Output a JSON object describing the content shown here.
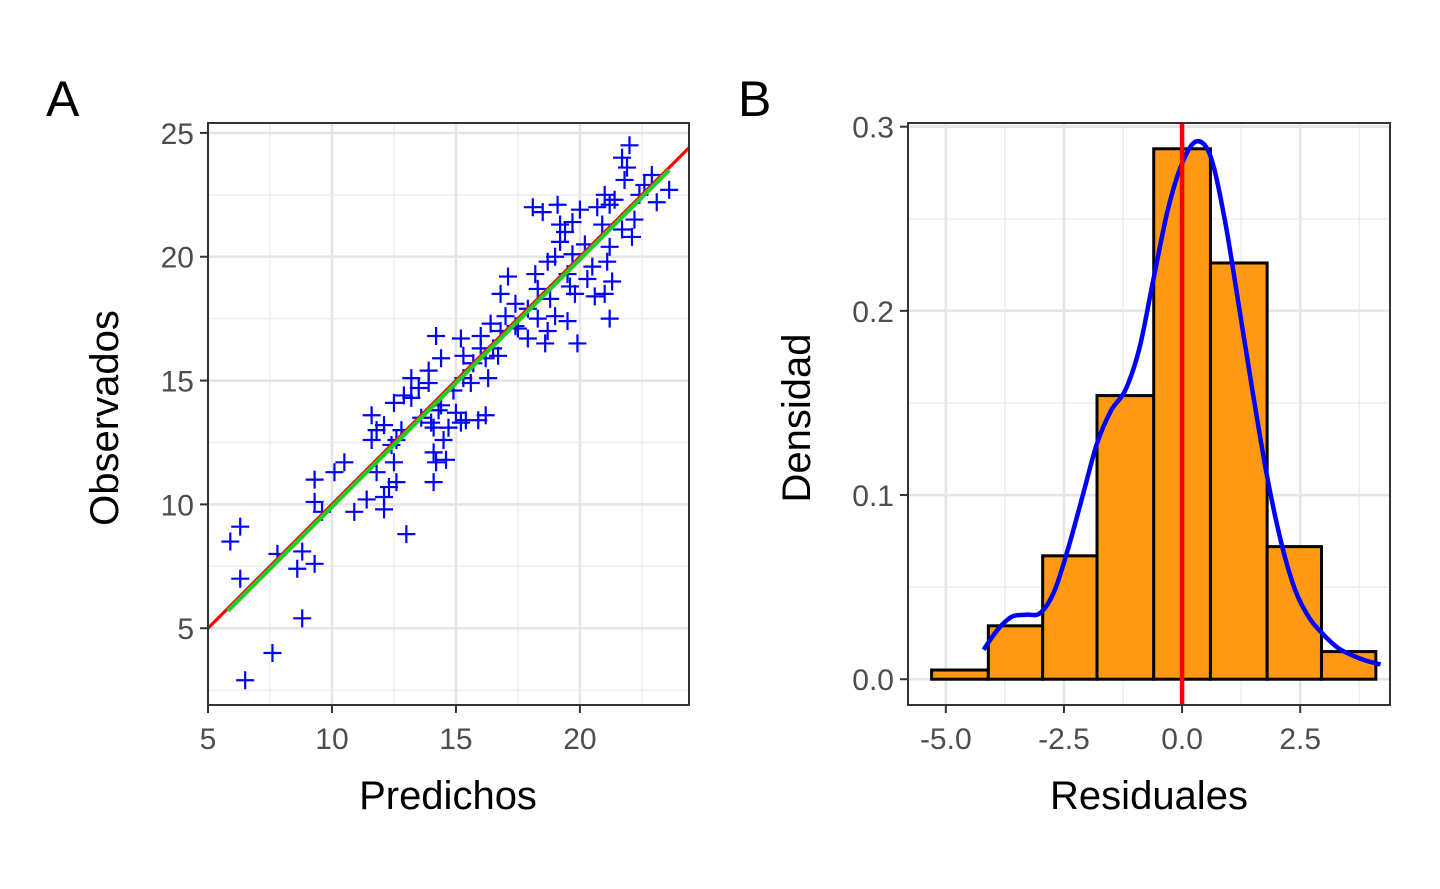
{
  "chart_data": [
    {
      "panel": "A",
      "type": "scatter",
      "xlabel": "Predichos",
      "ylabel": "Observados",
      "xlim": [
        5,
        24.4
      ],
      "ylim": [
        1.9,
        25.4
      ],
      "xticks": [
        5,
        10,
        15,
        20
      ],
      "yticks": [
        5,
        10,
        15,
        20,
        25
      ],
      "grid": true,
      "point_color": "#0000ff",
      "marker": "plus",
      "points": [
        [
          6.5,
          2.9
        ],
        [
          7.6,
          4.0
        ],
        [
          8.8,
          5.4
        ],
        [
          8.6,
          7.4
        ],
        [
          9.3,
          7.6
        ],
        [
          8.8,
          8.1
        ],
        [
          7.8,
          8.0
        ],
        [
          5.9,
          8.5
        ],
        [
          6.3,
          9.1
        ],
        [
          6.3,
          7.0
        ],
        [
          9.3,
          10.1
        ],
        [
          9.3,
          11.0
        ],
        [
          9.6,
          9.7
        ],
        [
          10.1,
          11.3
        ],
        [
          10.5,
          11.7
        ],
        [
          10.9,
          9.7
        ],
        [
          11.4,
          10.2
        ],
        [
          12.1,
          10.3
        ],
        [
          12.1,
          9.8
        ],
        [
          12.3,
          10.7
        ],
        [
          12.6,
          10.9
        ],
        [
          13.0,
          8.8
        ],
        [
          11.8,
          11.3
        ],
        [
          12.5,
          11.7
        ],
        [
          11.6,
          12.6
        ],
        [
          12.4,
          12.4
        ],
        [
          11.8,
          13.0
        ],
        [
          11.6,
          13.6
        ],
        [
          12.1,
          13.2
        ],
        [
          12.6,
          12.6
        ],
        [
          12.8,
          13.0
        ],
        [
          12.5,
          14.1
        ],
        [
          12.9,
          14.4
        ],
        [
          13.2,
          14.3
        ],
        [
          13.6,
          13.5
        ],
        [
          13.9,
          14.9
        ],
        [
          13.2,
          15.1
        ],
        [
          13.5,
          14.7
        ],
        [
          13.9,
          15.4
        ],
        [
          14.1,
          13.1
        ],
        [
          14.3,
          13.8
        ],
        [
          14.1,
          12.1
        ],
        [
          14.0,
          13.3
        ],
        [
          14.7,
          13.1
        ],
        [
          14.4,
          14.0
        ],
        [
          14.5,
          12.6
        ],
        [
          14.2,
          11.7
        ],
        [
          14.6,
          11.8
        ],
        [
          14.1,
          10.9
        ],
        [
          15.2,
          13.3
        ],
        [
          15.0,
          13.7
        ],
        [
          15.4,
          13.4
        ],
        [
          14.9,
          14.6
        ],
        [
          15.3,
          15.1
        ],
        [
          15.6,
          14.9
        ],
        [
          15.9,
          13.4
        ],
        [
          16.2,
          13.6
        ],
        [
          14.4,
          15.9
        ],
        [
          14.2,
          16.8
        ],
        [
          15.2,
          16.7
        ],
        [
          15.3,
          16.0
        ],
        [
          15.7,
          15.7
        ],
        [
          16.0,
          16.3
        ],
        [
          16.2,
          15.9
        ],
        [
          16.7,
          16.0
        ],
        [
          16.5,
          16.3
        ],
        [
          16.3,
          15.1
        ],
        [
          16.0,
          16.8
        ],
        [
          16.8,
          17.0
        ],
        [
          16.4,
          17.3
        ],
        [
          17.0,
          17.6
        ],
        [
          17.4,
          17.2
        ],
        [
          16.8,
          18.5
        ],
        [
          17.1,
          19.2
        ],
        [
          17.4,
          18.1
        ],
        [
          17.9,
          17.9
        ],
        [
          18.3,
          17.5
        ],
        [
          18.7,
          17.0
        ],
        [
          18.6,
          16.5
        ],
        [
          19.0,
          17.6
        ],
        [
          18.8,
          18.3
        ],
        [
          18.3,
          18.7
        ],
        [
          18.2,
          19.3
        ],
        [
          18.7,
          19.8
        ],
        [
          19.0,
          20.0
        ],
        [
          19.2,
          20.6
        ],
        [
          19.5,
          19.3
        ],
        [
          19.6,
          18.8
        ],
        [
          19.8,
          18.5
        ],
        [
          19.7,
          20.1
        ],
        [
          19.4,
          21.0
        ],
        [
          19.2,
          21.3
        ],
        [
          19.7,
          21.4
        ],
        [
          20.0,
          21.9
        ],
        [
          20.2,
          20.5
        ],
        [
          20.3,
          19.1
        ],
        [
          20.5,
          19.6
        ],
        [
          20.6,
          18.4
        ],
        [
          21.0,
          18.5
        ],
        [
          21.3,
          19.0
        ],
        [
          21.1,
          19.8
        ],
        [
          21.2,
          20.4
        ],
        [
          20.9,
          21.3
        ],
        [
          20.7,
          22.0
        ],
        [
          21.2,
          22.1
        ],
        [
          21.0,
          22.5
        ],
        [
          21.4,
          22.3
        ],
        [
          21.7,
          21.1
        ],
        [
          22.1,
          20.8
        ],
        [
          22.2,
          21.5
        ],
        [
          22.4,
          22.5
        ],
        [
          21.8,
          23.1
        ],
        [
          21.9,
          23.6
        ],
        [
          21.7,
          24.0
        ],
        [
          22.0,
          24.5
        ],
        [
          22.6,
          22.9
        ],
        [
          22.9,
          23.3
        ],
        [
          23.1,
          22.2
        ],
        [
          23.6,
          22.7
        ],
        [
          18.5,
          21.8
        ],
        [
          19.1,
          22.1
        ],
        [
          18.1,
          22.0
        ],
        [
          17.5,
          17.1
        ],
        [
          17.9,
          16.7
        ],
        [
          21.2,
          17.5
        ],
        [
          19.9,
          16.5
        ],
        [
          19.5,
          17.4
        ]
      ],
      "lines": [
        {
          "color": "#ff0000",
          "x": [
            5,
            24.4
          ],
          "y": [
            5.0,
            24.4
          ]
        },
        {
          "color": "#22cc22",
          "x": [
            5.8,
            23.6
          ],
          "y": [
            5.7,
            23.5
          ]
        }
      ]
    },
    {
      "panel": "B",
      "type": "bar",
      "xlabel": "Residuales",
      "ylabel": "Densidad",
      "xlim": [
        -5.8,
        4.4
      ],
      "ylim": [
        -0.014,
        0.302
      ],
      "xticks": [
        -5.0,
        -2.5,
        0.0,
        2.5
      ],
      "xtick_labels": [
        "-5.0",
        "-2.5",
        "0.0",
        "2.5"
      ],
      "yticks": [
        0.0,
        0.1,
        0.2,
        0.3
      ],
      "ytick_labels": [
        "0.0",
        "0.1",
        "0.2",
        "0.3"
      ],
      "grid": true,
      "bar_fill": "#ff9911",
      "bar_edge": "#000000",
      "bins": [
        {
          "x0": -5.3,
          "x1": -4.1,
          "density": 0.005
        },
        {
          "x0": -4.1,
          "x1": -2.95,
          "density": 0.029
        },
        {
          "x0": -2.95,
          "x1": -1.8,
          "density": 0.067
        },
        {
          "x0": -1.8,
          "x1": -0.6,
          "density": 0.154
        },
        {
          "x0": -0.6,
          "x1": 0.6,
          "density": 0.288
        },
        {
          "x0": 0.6,
          "x1": 1.8,
          "density": 0.226
        },
        {
          "x0": 1.8,
          "x1": 2.95,
          "density": 0.072
        },
        {
          "x0": 2.95,
          "x1": 4.1,
          "density": 0.015
        }
      ],
      "density_curve": {
        "color": "#0000ff",
        "points": [
          [
            -4.2,
            0.016
          ],
          [
            -3.9,
            0.027
          ],
          [
            -3.6,
            0.034
          ],
          [
            -3.3,
            0.035
          ],
          [
            -3.0,
            0.036
          ],
          [
            -2.7,
            0.048
          ],
          [
            -2.4,
            0.072
          ],
          [
            -2.1,
            0.1
          ],
          [
            -1.8,
            0.128
          ],
          [
            -1.5,
            0.146
          ],
          [
            -1.2,
            0.157
          ],
          [
            -0.9,
            0.18
          ],
          [
            -0.6,
            0.218
          ],
          [
            -0.3,
            0.255
          ],
          [
            0.0,
            0.28
          ],
          [
            0.3,
            0.292
          ],
          [
            0.6,
            0.284
          ],
          [
            0.9,
            0.25
          ],
          [
            1.2,
            0.203
          ],
          [
            1.5,
            0.155
          ],
          [
            1.8,
            0.11
          ],
          [
            2.1,
            0.074
          ],
          [
            2.4,
            0.048
          ],
          [
            2.7,
            0.033
          ],
          [
            3.0,
            0.024
          ],
          [
            3.3,
            0.017
          ],
          [
            3.6,
            0.013
          ],
          [
            3.9,
            0.01
          ],
          [
            4.2,
            0.008
          ]
        ]
      },
      "vline": {
        "x": 0.0,
        "color": "#ff0000"
      }
    }
  ]
}
